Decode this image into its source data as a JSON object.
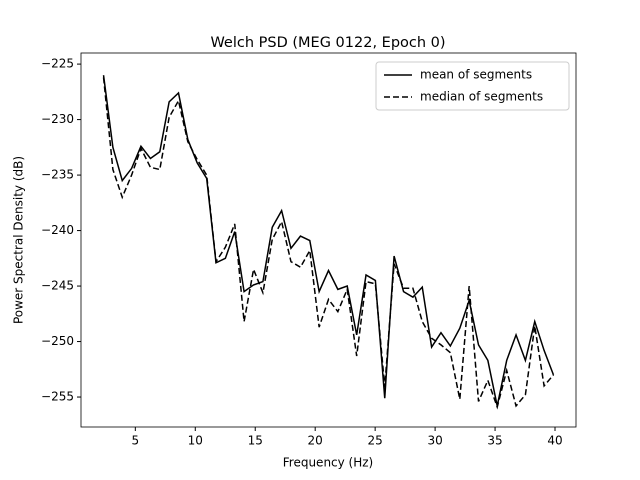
{
  "chart_data": {
    "type": "line",
    "title": "Welch PSD (MEG 0122, Epoch 0)",
    "xlabel": "Frequency (Hz)",
    "ylabel": "Power Spectral Density (dB)",
    "x": [
      2.35,
      3.13,
      3.91,
      4.69,
      5.47,
      6.26,
      7.04,
      7.82,
      8.6,
      9.38,
      10.16,
      10.95,
      11.73,
      12.51,
      13.29,
      14.07,
      14.86,
      15.64,
      16.42,
      17.2,
      17.98,
      18.77,
      19.55,
      20.33,
      21.11,
      21.89,
      22.67,
      23.46,
      24.24,
      25.02,
      25.8,
      26.58,
      27.37,
      28.15,
      28.93,
      29.71,
      30.49,
      31.27,
      32.06,
      32.84,
      33.62,
      34.4,
      35.18,
      35.97,
      36.75,
      37.53,
      38.31,
      39.09,
      39.87
    ],
    "series": [
      {
        "name": "mean of segments",
        "color": "#000000",
        "linestyle": "solid",
        "values": [
          -226.0,
          -232.5,
          -235.5,
          -234.4,
          -232.4,
          -233.5,
          -232.9,
          -228.4,
          -227.6,
          -231.8,
          -233.9,
          -235.3,
          -242.9,
          -242.5,
          -240.1,
          -245.5,
          -244.9,
          -244.6,
          -239.7,
          -238.2,
          -241.6,
          -240.5,
          -240.9,
          -245.5,
          -243.6,
          -245.3,
          -245.0,
          -249.4,
          -244.0,
          -244.5,
          -255.1,
          -242.3,
          -245.5,
          -246.0,
          -245.1,
          -250.5,
          -249.2,
          -250.4,
          -248.8,
          -246.3,
          -250.3,
          -251.7,
          -255.8,
          -251.7,
          -249.4,
          -251.7,
          -248.2,
          -250.8,
          -253.0
        ]
      },
      {
        "name": "median of segments",
        "color": "#000000",
        "linestyle": "dashed",
        "values": [
          -226.2,
          -234.5,
          -237.0,
          -235.0,
          -232.6,
          -234.3,
          -234.5,
          -229.8,
          -228.3,
          -232.0,
          -233.6,
          -235.0,
          -242.8,
          -241.5,
          -239.4,
          -248.2,
          -243.5,
          -245.6,
          -240.8,
          -239.2,
          -242.8,
          -243.3,
          -241.8,
          -248.7,
          -246.2,
          -247.3,
          -245.3,
          -251.3,
          -244.6,
          -244.8,
          -254.1,
          -243.0,
          -245.2,
          -245.2,
          -248.2,
          -249.7,
          -250.3,
          -251.0,
          -255.2,
          -245.0,
          -255.4,
          -253.5,
          -255.9,
          -252.6,
          -255.8,
          -254.8,
          -248.6,
          -254.0,
          -253.0
        ]
      }
    ],
    "xlim": [
      0.47,
      41.75
    ],
    "ylim": [
      -257.7,
      -224.0
    ],
    "xticks": [
      5,
      10,
      15,
      20,
      25,
      30,
      35,
      40
    ],
    "yticks": [
      {
        "value": -255,
        "label": "−255"
      },
      {
        "value": -250,
        "label": "−250"
      },
      {
        "value": -245,
        "label": "−245"
      },
      {
        "value": -240,
        "label": "−240"
      },
      {
        "value": -235,
        "label": "−235"
      },
      {
        "value": -230,
        "label": "−230"
      },
      {
        "value": -225,
        "label": "−225"
      }
    ],
    "legend": "upper right"
  }
}
